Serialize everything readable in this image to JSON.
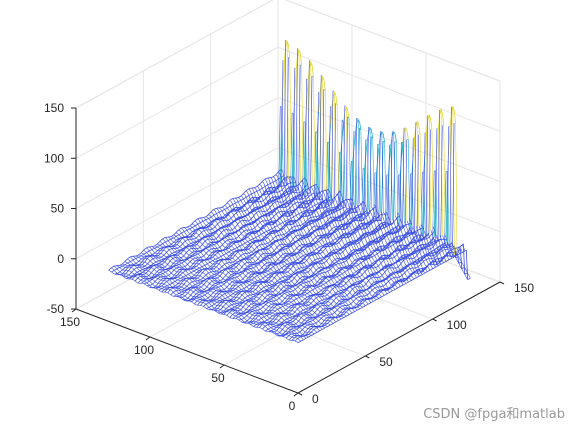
{
  "chart_data": {
    "type": "mesh3d",
    "title": "",
    "xlabel": "",
    "ylabel": "",
    "zlabel": "",
    "xlim": [
      0,
      150
    ],
    "ylim": [
      0,
      150
    ],
    "zlim": [
      -50,
      150
    ],
    "x_ticks": [
      "0",
      "50",
      "100",
      "150"
    ],
    "y_ticks": [
      "0",
      "50",
      "100",
      "150"
    ],
    "z_ticks": [
      "-50",
      "0",
      "50",
      "100",
      "150"
    ],
    "grid": true,
    "surface": {
      "x_range": [
        0,
        128
      ],
      "y_range": [
        0,
        128
      ],
      "base_level": 0,
      "ripple_amplitude": 6,
      "peak_row_x": 126,
      "peak_spacing_y": 8,
      "peak_count": 16,
      "peak_height": 140,
      "negative_dip": -30
    },
    "colors": {
      "mesh_low": "#3b4fe0",
      "mesh_mid": "#1fb3c8",
      "mesh_high": "#e3d62a"
    }
  },
  "watermark": "CSDN @fpga和matlab"
}
